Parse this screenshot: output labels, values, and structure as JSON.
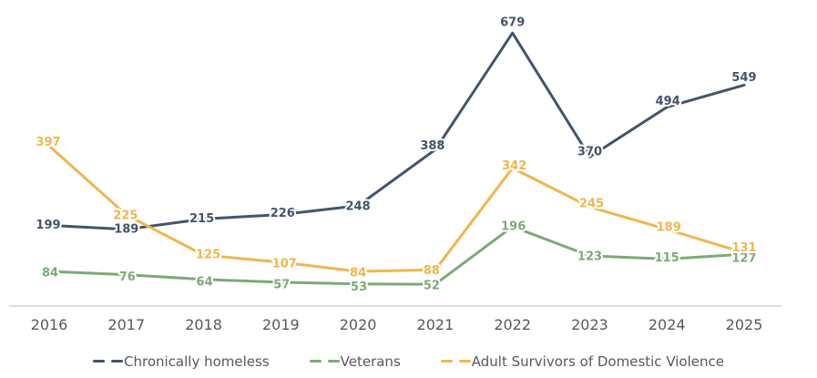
{
  "chart_data": {
    "type": "line",
    "categories": [
      "2016",
      "2017",
      "2018",
      "2019",
      "2020",
      "2021",
      "2022",
      "2023",
      "2024",
      "2025"
    ],
    "series": [
      {
        "name": "Chronically homeless",
        "color": "#44546A",
        "values": [
          199,
          189,
          215,
          226,
          248,
          388,
          679,
          370,
          494,
          549
        ],
        "label_offsets": [
          [
            -1,
            -1
          ],
          [
            0,
            -1
          ],
          [
            -2,
            -1
          ],
          [
            2,
            -2
          ],
          [
            0,
            0
          ],
          [
            -3,
            -5
          ],
          [
            0,
            -12
          ],
          [
            0,
            -6
          ],
          [
            1,
            -7
          ],
          [
            0,
            -9
          ]
        ]
      },
      {
        "name": "Veterans",
        "color": "#7CAA77",
        "values": [
          84,
          76,
          64,
          57,
          53,
          52,
          196,
          123,
          115,
          127
        ],
        "label_offsets": [
          [
            1,
            1
          ],
          [
            1,
            2
          ],
          [
            1,
            2
          ],
          [
            1,
            2
          ],
          [
            1,
            3
          ],
          [
            -4,
            1
          ],
          [
            1,
            -1
          ],
          [
            0,
            0
          ],
          [
            0,
            -2
          ],
          [
            0,
            4
          ]
        ]
      },
      {
        "name": "Adult Survivors of Domestic Violence",
        "color": "#F0B64E",
        "values": [
          397,
          225,
          125,
          107,
          84,
          88,
          342,
          245,
          189,
          131
        ],
        "label_offsets": [
          [
            -1,
            -5
          ],
          [
            -1,
            0
          ],
          [
            5,
            -1
          ],
          [
            4,
            1
          ],
          [
            0,
            1
          ],
          [
            -4,
            0
          ],
          [
            2,
            -3
          ],
          [
            2,
            -4
          ],
          [
            2,
            -3
          ],
          [
            0,
            -6
          ]
        ]
      }
    ],
    "title": "",
    "xlabel": "",
    "ylabel": "",
    "ylim": [
      0,
      700
    ],
    "grid": false,
    "data_labels": true,
    "legend_position": "bottom",
    "axis_line_color": "#DBDDE0",
    "tick_label_color": "#595959",
    "legend_text_color": "#595959",
    "background": "#ffffff"
  }
}
